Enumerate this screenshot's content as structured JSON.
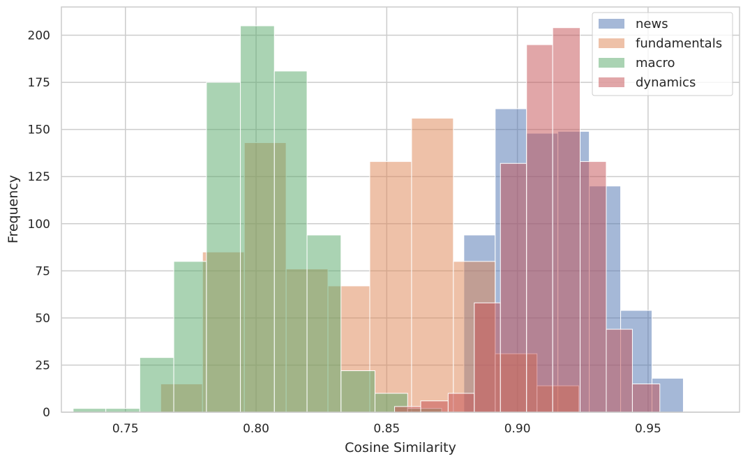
{
  "chart_data": {
    "type": "histogram",
    "xlabel": "Cosine Similarity",
    "ylabel": "Frequency",
    "xlim": [
      0.7255,
      0.985
    ],
    "ylim": [
      0,
      215
    ],
    "x_ticks": [
      0.75,
      0.8,
      0.85,
      0.9,
      0.95
    ],
    "x_tick_labels": [
      "0.75",
      "0.80",
      "0.85",
      "0.90",
      "0.95"
    ],
    "y_ticks": [
      0,
      25,
      50,
      75,
      100,
      125,
      150,
      175,
      200
    ],
    "y_tick_labels": [
      "0",
      "25",
      "50",
      "75",
      "100",
      "125",
      "150",
      "175",
      "200"
    ],
    "grid": true,
    "legend_position": "top-right",
    "series": [
      {
        "name": "news",
        "color": "#4C72B0",
        "bins": [
          {
            "x0": 0.8795,
            "x1": 0.8915,
            "count": 94
          },
          {
            "x0": 0.8915,
            "x1": 0.9035,
            "count": 161
          },
          {
            "x0": 0.9035,
            "x1": 0.9155,
            "count": 148
          },
          {
            "x0": 0.9155,
            "x1": 0.9275,
            "count": 149
          },
          {
            "x0": 0.9275,
            "x1": 0.9395,
            "count": 120
          },
          {
            "x0": 0.9395,
            "x1": 0.9515,
            "count": 54
          },
          {
            "x0": 0.9515,
            "x1": 0.9635,
            "count": 18
          }
        ]
      },
      {
        "name": "fundamentals",
        "color": "#DD8452",
        "bins": [
          {
            "x0": 0.7635,
            "x1": 0.7795,
            "count": 15
          },
          {
            "x0": 0.7795,
            "x1": 0.7955,
            "count": 85
          },
          {
            "x0": 0.7955,
            "x1": 0.8115,
            "count": 143
          },
          {
            "x0": 0.8115,
            "x1": 0.8275,
            "count": 76
          },
          {
            "x0": 0.8275,
            "x1": 0.8435,
            "count": 67
          },
          {
            "x0": 0.8435,
            "x1": 0.8595,
            "count": 133
          },
          {
            "x0": 0.8595,
            "x1": 0.8755,
            "count": 156
          },
          {
            "x0": 0.8755,
            "x1": 0.8915,
            "count": 80
          },
          {
            "x0": 0.8915,
            "x1": 0.9075,
            "count": 31
          },
          {
            "x0": 0.9075,
            "x1": 0.9235,
            "count": 14
          }
        ]
      },
      {
        "name": "macro",
        "color": "#55A868",
        "bins": [
          {
            "x0": 0.73,
            "x1": 0.7425,
            "count": 2
          },
          {
            "x0": 0.7425,
            "x1": 0.7555,
            "count": 2
          },
          {
            "x0": 0.7555,
            "x1": 0.7685,
            "count": 29
          },
          {
            "x0": 0.7685,
            "x1": 0.781,
            "count": 80
          },
          {
            "x0": 0.781,
            "x1": 0.794,
            "count": 175
          },
          {
            "x0": 0.794,
            "x1": 0.807,
            "count": 205
          },
          {
            "x0": 0.807,
            "x1": 0.8195,
            "count": 181
          },
          {
            "x0": 0.8195,
            "x1": 0.8325,
            "count": 94
          },
          {
            "x0": 0.8325,
            "x1": 0.8455,
            "count": 22
          },
          {
            "x0": 0.8455,
            "x1": 0.858,
            "count": 10
          },
          {
            "x0": 0.858,
            "x1": 0.871,
            "count": 2
          }
        ]
      },
      {
        "name": "dynamics",
        "color": "#C44E52",
        "bins": [
          {
            "x0": 0.853,
            "x1": 0.863,
            "count": 3
          },
          {
            "x0": 0.863,
            "x1": 0.8735,
            "count": 6
          },
          {
            "x0": 0.8735,
            "x1": 0.8835,
            "count": 10
          },
          {
            "x0": 0.8835,
            "x1": 0.8935,
            "count": 58
          },
          {
            "x0": 0.8935,
            "x1": 0.9035,
            "count": 132
          },
          {
            "x0": 0.9035,
            "x1": 0.9135,
            "count": 195
          },
          {
            "x0": 0.9135,
            "x1": 0.924,
            "count": 204
          },
          {
            "x0": 0.924,
            "x1": 0.934,
            "count": 133
          },
          {
            "x0": 0.934,
            "x1": 0.944,
            "count": 44
          },
          {
            "x0": 0.944,
            "x1": 0.9545,
            "count": 15
          }
        ]
      }
    ]
  }
}
